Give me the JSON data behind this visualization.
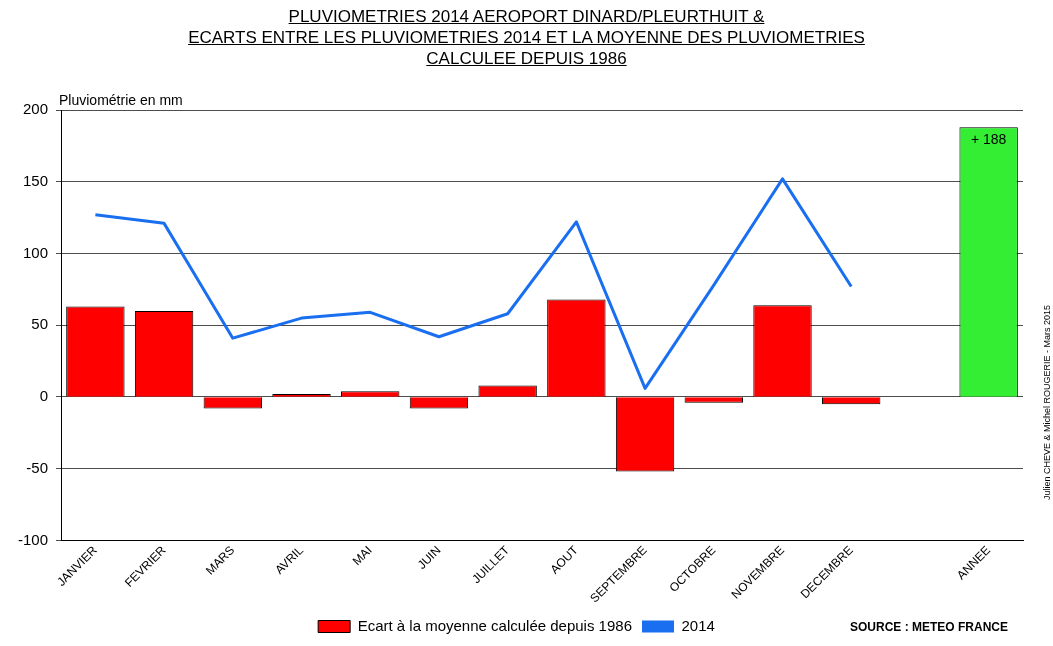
{
  "chart_data": {
    "type": "bar",
    "title": "PLUVIOMETRIES 2014 AEROPORT DINARD/PLEURTHUIT &\nECARTS ENTRE LES PLUVIOMETRIES 2014 ET LA MOYENNE DES PLUVIOMETRIES\nCALCULEE DEPUIS 1986",
    "ylabel": "Pluviométrie en mm",
    "categories": [
      "JANVIER",
      "FEVRIER",
      "MARS",
      "AVRIL",
      "MAI",
      "JUIN",
      "JUILLET",
      "AOUT",
      "SEPTEMBRE",
      "OCTOBRE",
      "NOVEMBRE",
      "DECEMBRE",
      null,
      "ANNEE"
    ],
    "series": [
      {
        "name": "Ecart à la moyenne calculée depuis 1986",
        "color": "#ff0000",
        "colors": [
          "#ff0000",
          "#ff0000",
          "#ff0000",
          "#ff0000",
          "#ff0000",
          "#ff0000",
          "#ff0000",
          "#ff0000",
          "#ff0000",
          "#ff0000",
          "#ff0000",
          "#ff0000",
          "#ff0000",
          "#33ee33"
        ],
        "values": [
          63,
          60,
          -8,
          2,
          4,
          -8,
          8,
          68,
          -52,
          -4,
          64,
          -5,
          null,
          188
        ],
        "value_labels": [
          null,
          null,
          null,
          null,
          null,
          null,
          null,
          null,
          null,
          null,
          null,
          null,
          null,
          "+ 188"
        ]
      },
      {
        "name": "2014",
        "type": "line",
        "color": "#1a6ff0",
        "values": [
          127,
          121,
          41,
          55,
          59,
          42,
          58,
          122,
          6,
          78,
          152,
          77,
          null,
          null
        ]
      }
    ],
    "ylim": [
      -100,
      200
    ],
    "yticks": [
      -100,
      -50,
      0,
      50,
      100,
      150,
      200
    ],
    "grid": "y",
    "legend": "bottom",
    "marker": "none",
    "line_style": "solid",
    "annotations": [
      "SOURCE : METEO FRANCE",
      "Julien CHEVE & Michel ROUGERIE - Mars 2015"
    ]
  }
}
